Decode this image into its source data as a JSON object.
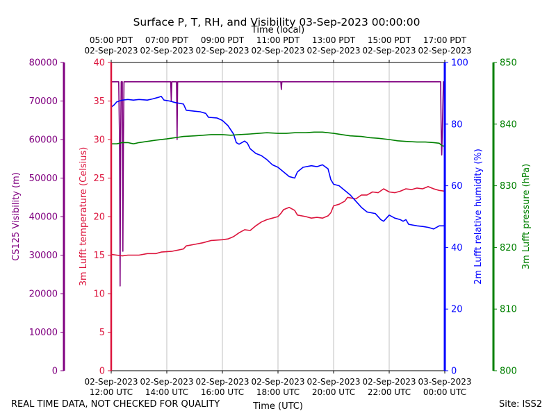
{
  "chart_data": {
    "type": "line",
    "title": "Surface P, T, RH, and Visibility 03-Sep-2023 00:00:00",
    "xlabel": "Time (UTC)",
    "x2label": "Time (local)",
    "xlim_hours_utc": [
      12,
      24
    ],
    "x_ticks_utc": [
      {
        "hour": 12,
        "line1": "02-Sep-2023",
        "line2": "12:00 UTC"
      },
      {
        "hour": 14,
        "line1": "02-Sep-2023",
        "line2": "14:00 UTC"
      },
      {
        "hour": 16,
        "line1": "02-Sep-2023",
        "line2": "16:00 UTC"
      },
      {
        "hour": 18,
        "line1": "02-Sep-2023",
        "line2": "18:00 UTC"
      },
      {
        "hour": 20,
        "line1": "02-Sep-2023",
        "line2": "20:00 UTC"
      },
      {
        "hour": 22,
        "line1": "02-Sep-2023",
        "line2": "22:00 UTC"
      },
      {
        "hour": 24,
        "line1": "03-Sep-2023",
        "line2": "00:00 UTC"
      }
    ],
    "x_ticks_local": [
      {
        "hour": 12,
        "line1": "05:00 PDT",
        "line2": "02-Sep-2023"
      },
      {
        "hour": 14,
        "line1": "07:00 PDT",
        "line2": "02-Sep-2023"
      },
      {
        "hour": 16,
        "line1": "09:00 PDT",
        "line2": "02-Sep-2023"
      },
      {
        "hour": 18,
        "line1": "11:00 PDT",
        "line2": "02-Sep-2023"
      },
      {
        "hour": 20,
        "line1": "13:00 PDT",
        "line2": "02-Sep-2023"
      },
      {
        "hour": 22,
        "line1": "15:00 PDT",
        "line2": "02-Sep-2023"
      },
      {
        "hour": 24,
        "line1": "17:00 PDT",
        "line2": "02-Sep-2023"
      }
    ],
    "grid": "vertical",
    "axes": [
      {
        "id": "vis",
        "label": "CS125 Visibility (m)",
        "color": "#800080",
        "ylim": [
          0,
          80000
        ],
        "ticks": [
          0,
          10000,
          20000,
          30000,
          40000,
          50000,
          60000,
          70000,
          80000
        ]
      },
      {
        "id": "temp",
        "label": "3m Lufft temperature (Celsius)",
        "color": "#dc143c",
        "ylim": [
          0,
          40
        ],
        "ticks": [
          0,
          5,
          10,
          15,
          20,
          25,
          30,
          35,
          40
        ]
      },
      {
        "id": "rh",
        "label": "2m Lufft relative humidity (%)",
        "color": "#0000ff",
        "ylim": [
          0,
          100
        ],
        "ticks": [
          0,
          20,
          40,
          60,
          80,
          100
        ]
      },
      {
        "id": "pres",
        "label": "3m Lufft pressure (hPa)",
        "color": "#008000",
        "ylim": [
          800,
          850
        ],
        "ticks": [
          800,
          810,
          820,
          830,
          840,
          850
        ]
      }
    ],
    "series": [
      {
        "name": "CS125 Visibility",
        "axis": "vis",
        "color": "#800080",
        "points": [
          [
            12.0,
            0
          ],
          [
            12.0,
            75000
          ],
          [
            12.1,
            75000
          ],
          [
            12.2,
            75000
          ],
          [
            12.27,
            75000
          ],
          [
            12.3,
            60000
          ],
          [
            12.32,
            22000
          ],
          [
            12.34,
            60000
          ],
          [
            12.36,
            75000
          ],
          [
            12.4,
            75000
          ],
          [
            12.42,
            31000
          ],
          [
            12.44,
            60000
          ],
          [
            12.46,
            75000
          ],
          [
            12.55,
            75000
          ],
          [
            13.0,
            75000
          ],
          [
            14.0,
            75000
          ],
          [
            14.14,
            75000
          ],
          [
            14.16,
            70000
          ],
          [
            14.18,
            75000
          ],
          [
            14.35,
            75000
          ],
          [
            14.37,
            60000
          ],
          [
            14.39,
            75000
          ],
          [
            15.0,
            75000
          ],
          [
            16.0,
            75000
          ],
          [
            17.0,
            75000
          ],
          [
            18.0,
            75000
          ],
          [
            18.1,
            75000
          ],
          [
            18.12,
            73000
          ],
          [
            18.14,
            75000
          ],
          [
            19.0,
            75000
          ],
          [
            20.0,
            75000
          ],
          [
            21.0,
            75000
          ],
          [
            22.0,
            75000
          ],
          [
            23.0,
            75000
          ],
          [
            23.85,
            75000
          ],
          [
            23.87,
            62000
          ],
          [
            23.89,
            56000
          ],
          [
            23.91,
            62000
          ],
          [
            23.95,
            75000
          ],
          [
            24.0,
            75000
          ]
        ]
      },
      {
        "name": "3m Lufft temperature",
        "axis": "temp",
        "color": "#dc143c",
        "points": [
          [
            12.0,
            0
          ],
          [
            12.0,
            15.1
          ],
          [
            12.2,
            15.0
          ],
          [
            12.4,
            14.9
          ],
          [
            12.6,
            15.0
          ],
          [
            13.0,
            15.0
          ],
          [
            13.3,
            15.2
          ],
          [
            13.6,
            15.2
          ],
          [
            13.8,
            15.4
          ],
          [
            14.2,
            15.5
          ],
          [
            14.6,
            15.8
          ],
          [
            14.7,
            16.2
          ],
          [
            15.0,
            16.4
          ],
          [
            15.3,
            16.6
          ],
          [
            15.6,
            16.9
          ],
          [
            16.0,
            17.0
          ],
          [
            16.2,
            17.1
          ],
          [
            16.4,
            17.4
          ],
          [
            16.6,
            17.9
          ],
          [
            16.8,
            18.3
          ],
          [
            17.0,
            18.2
          ],
          [
            17.2,
            18.8
          ],
          [
            17.4,
            19.3
          ],
          [
            17.6,
            19.6
          ],
          [
            17.8,
            19.8
          ],
          [
            18.0,
            20.0
          ],
          [
            18.1,
            20.4
          ],
          [
            18.2,
            20.9
          ],
          [
            18.4,
            21.2
          ],
          [
            18.6,
            20.8
          ],
          [
            18.7,
            20.2
          ],
          [
            19.0,
            20.0
          ],
          [
            19.2,
            19.8
          ],
          [
            19.4,
            19.9
          ],
          [
            19.6,
            19.8
          ],
          [
            19.8,
            20.1
          ],
          [
            19.9,
            20.5
          ],
          [
            20.0,
            21.4
          ],
          [
            20.2,
            21.6
          ],
          [
            20.4,
            22.0
          ],
          [
            20.5,
            22.5
          ],
          [
            20.8,
            22.3
          ],
          [
            21.0,
            22.8
          ],
          [
            21.2,
            22.8
          ],
          [
            21.4,
            23.2
          ],
          [
            21.6,
            23.1
          ],
          [
            21.8,
            23.6
          ],
          [
            22.0,
            23.2
          ],
          [
            22.2,
            23.1
          ],
          [
            22.4,
            23.3
          ],
          [
            22.6,
            23.6
          ],
          [
            22.8,
            23.5
          ],
          [
            23.0,
            23.7
          ],
          [
            23.2,
            23.6
          ],
          [
            23.4,
            23.9
          ],
          [
            23.6,
            23.6
          ],
          [
            23.8,
            23.4
          ],
          [
            24.0,
            23.3
          ],
          [
            24.0,
            0
          ]
        ]
      },
      {
        "name": "2m Lufft relative humidity",
        "axis": "rh",
        "color": "#0000ff",
        "points": [
          [
            12.0,
            0
          ],
          [
            12.0,
            85.5
          ],
          [
            12.1,
            86.2
          ],
          [
            12.2,
            87.2
          ],
          [
            12.4,
            87.8
          ],
          [
            12.6,
            88.0
          ],
          [
            12.8,
            87.8
          ],
          [
            13.0,
            88.0
          ],
          [
            13.3,
            87.8
          ],
          [
            13.5,
            88.2
          ],
          [
            13.7,
            88.7
          ],
          [
            13.8,
            89.0
          ],
          [
            13.9,
            87.8
          ],
          [
            14.1,
            87.5
          ],
          [
            14.3,
            87.0
          ],
          [
            14.6,
            86.5
          ],
          [
            14.7,
            84.5
          ],
          [
            15.0,
            84.2
          ],
          [
            15.2,
            84.0
          ],
          [
            15.4,
            83.5
          ],
          [
            15.5,
            82.2
          ],
          [
            15.8,
            82.0
          ],
          [
            16.0,
            81.2
          ],
          [
            16.2,
            79.5
          ],
          [
            16.4,
            76.8
          ],
          [
            16.5,
            74.0
          ],
          [
            16.6,
            73.5
          ],
          [
            16.8,
            74.5
          ],
          [
            16.9,
            73.8
          ],
          [
            17.0,
            72.0
          ],
          [
            17.2,
            70.5
          ],
          [
            17.4,
            69.8
          ],
          [
            17.6,
            68.5
          ],
          [
            17.8,
            66.8
          ],
          [
            18.0,
            66.0
          ],
          [
            18.2,
            64.5
          ],
          [
            18.4,
            63.0
          ],
          [
            18.6,
            62.5
          ],
          [
            18.7,
            64.5
          ],
          [
            18.9,
            66.0
          ],
          [
            19.2,
            66.5
          ],
          [
            19.4,
            66.2
          ],
          [
            19.6,
            66.8
          ],
          [
            19.8,
            65.5
          ],
          [
            19.9,
            62.0
          ],
          [
            20.0,
            60.5
          ],
          [
            20.2,
            60.0
          ],
          [
            20.4,
            58.5
          ],
          [
            20.6,
            57.0
          ],
          [
            20.7,
            56.0
          ],
          [
            20.9,
            54.0
          ],
          [
            21.0,
            53.0
          ],
          [
            21.2,
            51.5
          ],
          [
            21.5,
            51.0
          ],
          [
            21.7,
            49.0
          ],
          [
            21.8,
            48.5
          ],
          [
            22.0,
            50.5
          ],
          [
            22.2,
            49.5
          ],
          [
            22.4,
            49.0
          ],
          [
            22.5,
            48.5
          ],
          [
            22.6,
            49.0
          ],
          [
            22.7,
            47.5
          ],
          [
            23.0,
            47.0
          ],
          [
            23.2,
            46.8
          ],
          [
            23.4,
            46.5
          ],
          [
            23.6,
            46.0
          ],
          [
            23.8,
            47.0
          ],
          [
            24.0,
            47.0
          ],
          [
            24.0,
            0
          ]
        ]
      },
      {
        "name": "3m Lufft pressure",
        "axis": "pres",
        "color": "#008000",
        "points": [
          [
            12.0,
            836.8
          ],
          [
            12.2,
            836.8
          ],
          [
            12.4,
            837.0
          ],
          [
            12.6,
            837.0
          ],
          [
            12.8,
            836.8
          ],
          [
            13.0,
            837.0
          ],
          [
            13.3,
            837.2
          ],
          [
            13.6,
            837.4
          ],
          [
            14.0,
            837.6
          ],
          [
            14.3,
            837.8
          ],
          [
            14.6,
            838.0
          ],
          [
            15.0,
            838.1
          ],
          [
            15.3,
            838.2
          ],
          [
            15.6,
            838.3
          ],
          [
            16.0,
            838.3
          ],
          [
            16.3,
            838.2
          ],
          [
            16.6,
            838.3
          ],
          [
            17.0,
            838.4
          ],
          [
            17.3,
            838.5
          ],
          [
            17.6,
            838.6
          ],
          [
            18.0,
            838.5
          ],
          [
            18.3,
            838.5
          ],
          [
            18.6,
            838.6
          ],
          [
            19.0,
            838.6
          ],
          [
            19.3,
            838.7
          ],
          [
            19.6,
            838.7
          ],
          [
            20.0,
            838.5
          ],
          [
            20.3,
            838.3
          ],
          [
            20.6,
            838.1
          ],
          [
            21.0,
            838.0
          ],
          [
            21.3,
            837.8
          ],
          [
            21.6,
            837.7
          ],
          [
            22.0,
            837.5
          ],
          [
            22.3,
            837.3
          ],
          [
            22.6,
            837.2
          ],
          [
            23.0,
            837.1
          ],
          [
            23.3,
            837.1
          ],
          [
            23.6,
            837.0
          ],
          [
            23.8,
            836.9
          ],
          [
            23.9,
            836.5
          ],
          [
            24.0,
            836.4
          ]
        ]
      }
    ]
  },
  "footer": {
    "left_note": "REAL TIME DATA, NOT CHECKED FOR QUALITY",
    "site": "Site: ISS2"
  }
}
